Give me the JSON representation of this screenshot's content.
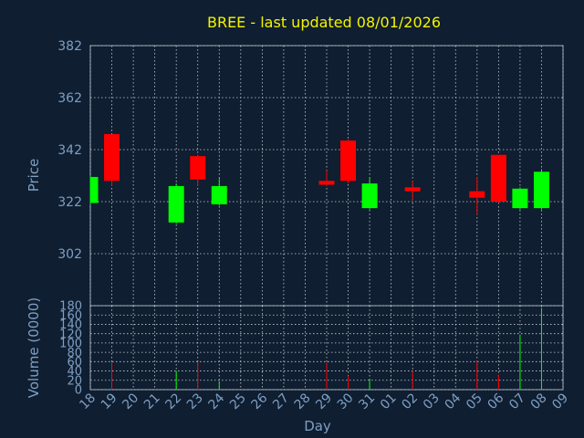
{
  "colors": {
    "background": "#0f1e30",
    "title": "#f4f400",
    "axis_text": "#7e9fc4",
    "frame": "#9aa9b8",
    "grid": "#c8d0da",
    "up": "#00ff00",
    "down": "#ff0000"
  },
  "chart_data": [
    {
      "type": "candlestick",
      "title": "BREE - last updated 08/01/2026",
      "ylabel": "Price",
      "ylim": [
        282,
        382
      ],
      "yticks": [
        302,
        322,
        342,
        362,
        382
      ],
      "grid": true,
      "categories": [
        "18",
        "19",
        "20",
        "21",
        "22",
        "23",
        "24",
        "25",
        "26",
        "27",
        "28",
        "29",
        "30",
        "31",
        "01",
        "02",
        "03",
        "04",
        "05",
        "06",
        "07",
        "08",
        "09"
      ],
      "candles": [
        {
          "day": "18",
          "open": 321.5,
          "close": 331.5,
          "high": 332,
          "low": 321
        },
        {
          "day": "19",
          "open": 348,
          "close": 330,
          "high": 348,
          "low": 328
        },
        {
          "day": "22",
          "open": 314,
          "close": 328,
          "high": 329,
          "low": 313.5
        },
        {
          "day": "23",
          "open": 339.5,
          "close": 330.5,
          "high": 340,
          "low": 328
        },
        {
          "day": "24",
          "open": 321,
          "close": 328,
          "high": 331,
          "low": 320.5
        },
        {
          "day": "29",
          "open": 330,
          "close": 328.5,
          "high": 334,
          "low": 328
        },
        {
          "day": "30",
          "open": 345.5,
          "close": 330,
          "high": 346,
          "low": 329
        },
        {
          "day": "31",
          "open": 319.5,
          "close": 329,
          "high": 331,
          "low": 319
        },
        {
          "day": "02",
          "open": 327.5,
          "close": 326,
          "high": 330,
          "low": 322.5
        },
        {
          "day": "05",
          "open": 326,
          "close": 323.5,
          "high": 331.5,
          "low": 317
        },
        {
          "day": "06",
          "open": 340,
          "close": 322,
          "high": 340,
          "low": 321.5
        },
        {
          "day": "07",
          "open": 319.5,
          "close": 327,
          "high": 327.5,
          "low": 319
        },
        {
          "day": "08",
          "open": 319.5,
          "close": 333.5,
          "high": 334.5,
          "low": 319
        }
      ]
    },
    {
      "type": "bar",
      "xlabel": "Day",
      "ylabel": "Volume (0000)",
      "ylim": [
        0,
        180
      ],
      "yticks": [
        0,
        20,
        40,
        60,
        80,
        100,
        120,
        140,
        160,
        180
      ],
      "grid": true,
      "categories": [
        "18",
        "19",
        "20",
        "21",
        "22",
        "23",
        "24",
        "25",
        "26",
        "27",
        "28",
        "29",
        "30",
        "31",
        "01",
        "02",
        "03",
        "04",
        "05",
        "06",
        "07",
        "08",
        "09"
      ],
      "bars": [
        {
          "day": "19",
          "value": 60,
          "direction": "down"
        },
        {
          "day": "22",
          "value": 40,
          "direction": "up"
        },
        {
          "day": "23",
          "value": 60,
          "direction": "down"
        },
        {
          "day": "24",
          "value": 18,
          "direction": "up"
        },
        {
          "day": "29",
          "value": 58,
          "direction": "down"
        },
        {
          "day": "30",
          "value": 30,
          "direction": "down"
        },
        {
          "day": "31",
          "value": 22,
          "direction": "up"
        },
        {
          "day": "02",
          "value": 40,
          "direction": "down"
        },
        {
          "day": "05",
          "value": 62,
          "direction": "down"
        },
        {
          "day": "06",
          "value": 32,
          "direction": "down"
        },
        {
          "day": "07",
          "value": 118,
          "direction": "up"
        },
        {
          "day": "08",
          "value": 175,
          "direction": "up"
        }
      ]
    }
  ]
}
